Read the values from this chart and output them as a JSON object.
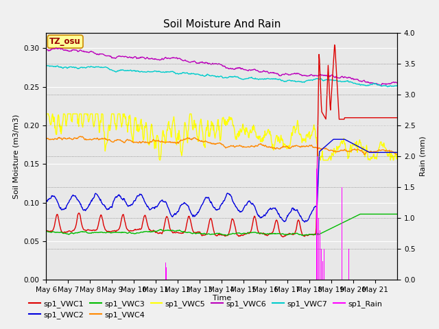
{
  "title": "Soil Moisture And Rain",
  "xlabel": "Time",
  "ylabel_left": "Soil Moisture (m3/m3)",
  "ylabel_right": "Rain (mm)",
  "annotation": "TZ_osu",
  "ylim_left": [
    0.0,
    0.32
  ],
  "ylim_right": [
    0.0,
    4.0
  ],
  "bg_color": "#f0f0f0",
  "plot_bg_color": "#e8e8e8",
  "series_colors": {
    "sp1_VWC1": "#dd0000",
    "sp1_VWC2": "#0000dd",
    "sp1_VWC3": "#00bb00",
    "sp1_VWC4": "#ff8800",
    "sp1_VWC5": "#ffff00",
    "sp1_VWC6": "#bb00bb",
    "sp1_VWC7": "#00cccc",
    "sp1_Rain": "#ff00ff"
  },
  "tick_labels": [
    "May 6",
    "May 7",
    "May 8",
    "May 9",
    "May 10",
    "May 11",
    "May 12",
    "May 13",
    "May 14",
    "May 15",
    "May 16",
    "May 17",
    "May 18",
    "May 19",
    "May 20",
    "May 21"
  ],
  "title_fontsize": 11,
  "axis_label_fontsize": 8,
  "tick_fontsize": 7.5,
  "legend_fontsize": 8
}
